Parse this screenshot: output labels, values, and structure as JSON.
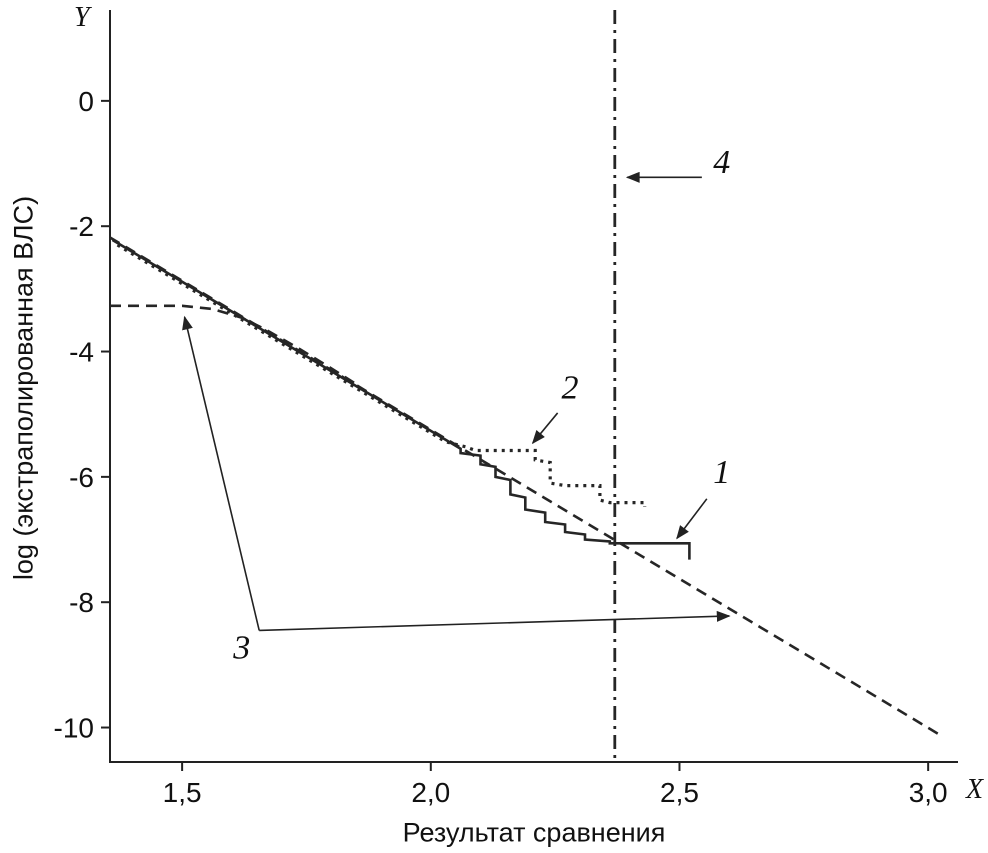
{
  "figure": {
    "y_corner_label": "Y",
    "x_corner_label": "X"
  },
  "chart_data": {
    "type": "line",
    "title": "",
    "xlabel": "Результат сравнения",
    "ylabel": "log (экстраполированная ВЛС)",
    "xlim": [
      1.355,
      3.06
    ],
    "ylim": [
      -10.55,
      1.45
    ],
    "grid": false,
    "legend": "none",
    "x_ticks": [
      1.5,
      2.0,
      2.5,
      3.0
    ],
    "x_tick_labels": [
      "1,5",
      "2,0",
      "2,5",
      "3,0"
    ],
    "y_ticks": [
      0,
      -2,
      -4,
      -6,
      -8,
      -10
    ],
    "y_tick_labels": [
      "0",
      "-2",
      "-4",
      "-6",
      "-8",
      "-10"
    ],
    "series": [
      {
        "name": "4",
        "style": "dashdot",
        "width": 2.8,
        "points": [
          [
            2.37,
            1.45
          ],
          [
            2.37,
            -10.55
          ]
        ]
      },
      {
        "name": "3",
        "style": "dashed",
        "width": 2.6,
        "points": [
          [
            1.355,
            -2.18
          ],
          [
            3.02,
            -10.1
          ]
        ]
      },
      {
        "name": "3",
        "style": "dashed",
        "width": 2.6,
        "points": [
          [
            1.355,
            -3.27
          ],
          [
            1.5,
            -3.27
          ],
          [
            1.56,
            -3.32
          ],
          [
            1.62,
            -3.46
          ],
          [
            1.67,
            -3.66
          ],
          [
            1.73,
            -3.93
          ],
          [
            1.79,
            -4.22
          ],
          [
            1.85,
            -4.52
          ]
        ]
      },
      {
        "name": "2",
        "style": "dotted",
        "width": 3.2,
        "points": [
          [
            1.37,
            -2.3
          ],
          [
            2.03,
            -5.44
          ],
          [
            2.07,
            -5.52
          ],
          [
            2.09,
            -5.58
          ],
          [
            2.21,
            -5.58
          ],
          [
            2.21,
            -5.73
          ],
          [
            2.24,
            -5.77
          ],
          [
            2.24,
            -6.1
          ],
          [
            2.27,
            -6.14
          ],
          [
            2.34,
            -6.14
          ],
          [
            2.34,
            -6.37
          ],
          [
            2.36,
            -6.41
          ],
          [
            2.43,
            -6.41
          ],
          [
            2.43,
            -6.48
          ]
        ]
      },
      {
        "name": "1",
        "style": "solid",
        "width": 2.6,
        "points": [
          [
            1.36,
            -2.22
          ],
          [
            2.06,
            -5.55
          ],
          [
            2.06,
            -5.62
          ],
          [
            2.1,
            -5.66
          ],
          [
            2.1,
            -5.8
          ],
          [
            2.13,
            -5.84
          ],
          [
            2.13,
            -6.0
          ],
          [
            2.16,
            -6.05
          ],
          [
            2.16,
            -6.28
          ],
          [
            2.19,
            -6.33
          ],
          [
            2.19,
            -6.52
          ],
          [
            2.23,
            -6.57
          ],
          [
            2.23,
            -6.72
          ],
          [
            2.27,
            -6.76
          ],
          [
            2.27,
            -6.88
          ],
          [
            2.31,
            -6.92
          ],
          [
            2.31,
            -7.0
          ],
          [
            2.36,
            -7.03
          ],
          [
            2.36,
            -7.06
          ],
          [
            2.52,
            -7.06
          ],
          [
            2.52,
            -7.32
          ]
        ]
      }
    ],
    "annotations": [
      {
        "label": "4",
        "label_x": 2.585,
        "label_y": -1.15,
        "arrows": [
          {
            "from": [
              2.545,
              -1.22
            ],
            "to": [
              2.395,
              -1.22
            ]
          }
        ]
      },
      {
        "label": "2",
        "label_x": 2.28,
        "label_y": -4.75,
        "arrows": [
          {
            "from": [
              2.255,
              -4.98
            ],
            "to": [
              2.205,
              -5.46
            ]
          }
        ]
      },
      {
        "label": "1",
        "label_x": 2.585,
        "label_y": -6.1,
        "arrows": [
          {
            "from": [
              2.555,
              -6.35
            ],
            "to": [
              2.495,
              -6.98
            ]
          }
        ]
      },
      {
        "label": "3",
        "label_x": 1.62,
        "label_y": -8.9,
        "arrows": [
          {
            "from": [
              1.655,
              -8.45
            ],
            "to": [
              1.505,
              -3.45
            ]
          },
          {
            "from": [
              1.655,
              -8.45
            ],
            "to": [
              2.6,
              -8.22
            ]
          }
        ]
      }
    ]
  }
}
